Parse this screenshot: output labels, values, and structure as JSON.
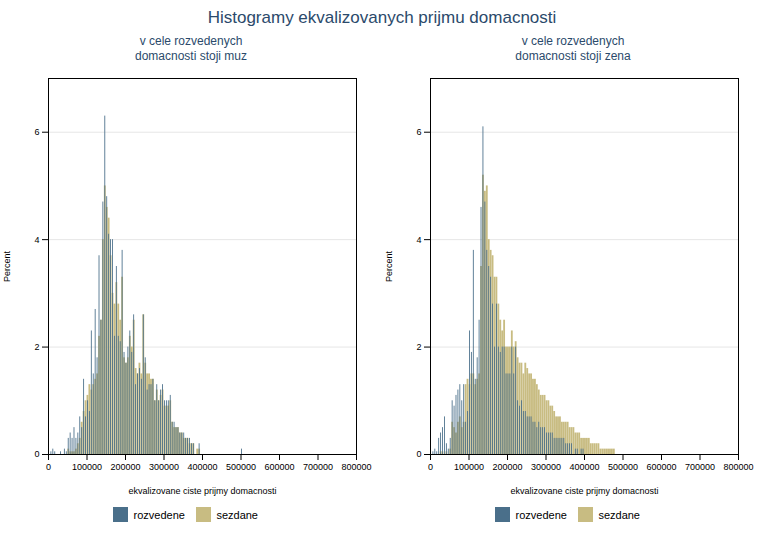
{
  "title": "Histogramy ekvalizovanych prijmu domacnosti",
  "chart_data": [
    {
      "type": "histogram",
      "title": "v cele rozvedenych\ndomacnosti stoji muz",
      "xlabel": "ekvalizovane ciste prijmy domacnosti",
      "ylabel": "Percent",
      "xlim": [
        0,
        800000
      ],
      "xticks": [
        0,
        100000,
        200000,
        300000,
        400000,
        500000,
        600000,
        700000,
        800000
      ],
      "ylim": [
        0,
        7
      ],
      "yticks": [
        0,
        2,
        4,
        6
      ],
      "grid": true,
      "legend": "bottom",
      "bins": [
        0,
        5000,
        10000,
        15000,
        20000,
        25000,
        30000,
        35000,
        40000,
        45000,
        50000,
        55000,
        60000,
        65000,
        70000,
        75000,
        80000,
        85000,
        90000,
        95000,
        100000,
        105000,
        110000,
        115000,
        120000,
        125000,
        130000,
        135000,
        140000,
        145000,
        150000,
        155000,
        160000,
        165000,
        170000,
        175000,
        180000,
        185000,
        190000,
        195000,
        200000,
        205000,
        210000,
        215000,
        220000,
        225000,
        230000,
        235000,
        240000,
        245000,
        250000,
        255000,
        260000,
        265000,
        270000,
        275000,
        280000,
        285000,
        290000,
        295000,
        300000,
        305000,
        310000,
        315000,
        320000,
        325000,
        330000,
        335000,
        340000,
        345000,
        350000,
        355000,
        360000,
        365000,
        370000,
        375000,
        380000,
        385000,
        390000,
        395000,
        400000,
        405000,
        410000,
        415000,
        420000,
        425000,
        430000,
        435000,
        440000,
        445000,
        450000,
        455000,
        460000,
        465000,
        470000,
        475000,
        480000,
        485000,
        490000,
        495000,
        500000,
        505000,
        510000,
        515000,
        520000,
        525000,
        530000,
        535000,
        540000,
        545000,
        550000,
        555000,
        560000,
        565000,
        570000,
        575000,
        580000,
        585000,
        590000,
        595000,
        600000,
        605000,
        610000,
        615000,
        620000,
        625000,
        630000,
        635000,
        640000,
        645000,
        650000,
        655000,
        660000,
        665000,
        670000,
        675000,
        680000,
        685000,
        690000,
        695000,
        700000,
        705000,
        710000,
        715000,
        720000,
        725000,
        730000,
        735000,
        740000,
        745000,
        750000,
        755000,
        760000,
        765000,
        770000,
        775000,
        780000,
        785000,
        790000,
        795000,
        800000
      ],
      "series": [
        {
          "name": "rozvedene",
          "color": "#4a6f8a",
          "values": [
            0.0,
            0.05,
            0.1,
            0.05,
            0.0,
            0.0,
            0.05,
            0.0,
            0.1,
            0.05,
            0.3,
            0.4,
            0.3,
            0.5,
            0.3,
            0.4,
            0.7,
            0.5,
            1.4,
            0.7,
            1.0,
            0.8,
            2.3,
            1.5,
            2.7,
            1.8,
            3.7,
            2.5,
            4.7,
            6.3,
            4.8,
            4.1,
            4.0,
            4.0,
            2.2,
            3.5,
            2.2,
            2.1,
            3.8,
            1.9,
            1.7,
            2.0,
            2.3,
            1.9,
            2.6,
            1.3,
            1.5,
            1.6,
            1.4,
            2.6,
            1.8,
            1.2,
            1.3,
            1.3,
            1.4,
            1.0,
            1.3,
            1.0,
            1.2,
            1.3,
            1.0,
            1.0,
            1.0,
            1.1,
            0.6,
            0.6,
            0.5,
            0.5,
            0.4,
            0.4,
            0.4,
            0.3,
            0.3,
            0.3,
            0.2,
            0.2,
            0.0,
            0.0,
            0.2,
            0.0,
            0.0,
            0.0,
            0.0,
            0.0,
            0.0,
            0.0,
            0.0,
            0.0,
            0.0,
            0.0,
            0.0,
            0.0,
            0.0,
            0.0,
            0.0,
            0.0,
            0.0,
            0.0,
            0.0,
            0.0,
            0.1,
            0.0,
            0.0,
            0.0,
            0.0,
            0.0,
            0.0,
            0.0,
            0.0,
            0.0,
            0.0,
            0.0,
            0.0,
            0.0,
            0.0,
            0.0,
            0.0,
            0.0,
            0.0,
            0.0,
            0.0,
            0.0,
            0.0,
            0.0,
            0.0,
            0.0,
            0.0,
            0.0,
            0.0,
            0.0,
            0.0,
            0.0,
            0.0,
            0.0,
            0.0,
            0.0,
            0.0,
            0.0,
            0.0,
            0.0,
            0.0,
            0.0,
            0.0,
            0.0,
            0.0,
            0.0,
            0.0,
            0.0,
            0.0,
            0.0,
            0.0,
            0.0,
            0.0,
            0.0,
            0.0,
            0.0,
            0.0,
            0.0,
            0.0,
            0.0
          ]
        },
        {
          "name": "sezdane",
          "color": "#c8bc82",
          "values": [
            0.0,
            0.0,
            0.0,
            0.0,
            0.0,
            0.0,
            0.0,
            0.0,
            0.0,
            0.0,
            0.1,
            0.05,
            0.05,
            0.05,
            0.1,
            0.2,
            0.3,
            0.6,
            0.8,
            1.0,
            1.1,
            1.3,
            1.2,
            1.3,
            1.4,
            1.5,
            2.2,
            2.5,
            4.0,
            5.0,
            4.6,
            4.4,
            3.7,
            3.0,
            2.8,
            3.2,
            2.8,
            2.5,
            3.3,
            1.8,
            1.7,
            1.8,
            2.2,
            2.0,
            2.5,
            1.6,
            1.5,
            1.7,
            1.5,
            2.6,
            1.7,
            1.5,
            1.5,
            1.4,
            1.4,
            1.0,
            1.2,
            1.0,
            1.1,
            1.2,
            0.9,
            0.9,
            0.9,
            1.0,
            0.6,
            0.5,
            0.5,
            0.5,
            0.4,
            0.4,
            0.3,
            0.3,
            0.3,
            0.2,
            0.2,
            0.2,
            0.0,
            0.1,
            0.1,
            0.0,
            0.0,
            0.0,
            0.0,
            0.0,
            0.0,
            0.0,
            0.0,
            0.0,
            0.0,
            0.0,
            0.0,
            0.0,
            0.0,
            0.0,
            0.0,
            0.0,
            0.0,
            0.0,
            0.0,
            0.0,
            0.0,
            0.0,
            0.0,
            0.0,
            0.0,
            0.0,
            0.0,
            0.0,
            0.0,
            0.0,
            0.0,
            0.0,
            0.0,
            0.0,
            0.0,
            0.0,
            0.0,
            0.0,
            0.0,
            0.0,
            0.0,
            0.0,
            0.0,
            0.0,
            0.0,
            0.0,
            0.0,
            0.0,
            0.0,
            0.0,
            0.0,
            0.0,
            0.0,
            0.0,
            0.0,
            0.0,
            0.0,
            0.0,
            0.0,
            0.0,
            0.0,
            0.0,
            0.0,
            0.0,
            0.0,
            0.0,
            0.0,
            0.0,
            0.0,
            0.0,
            0.0,
            0.0,
            0.0,
            0.0,
            0.0,
            0.0,
            0.0,
            0.0,
            0.0,
            0.0
          ]
        }
      ]
    },
    {
      "type": "histogram",
      "title": "v cele rozvedenych\ndomacnosti stoji zena",
      "xlabel": "ekvalizovane ciste prijmy domacnosti",
      "ylabel": "Percent",
      "xlim": [
        0,
        800000
      ],
      "xticks": [
        0,
        100000,
        200000,
        300000,
        400000,
        500000,
        600000,
        700000,
        800000
      ],
      "ylim": [
        0,
        7
      ],
      "yticks": [
        0,
        2,
        4,
        6
      ],
      "grid": true,
      "legend": "bottom",
      "bins": [
        0,
        5000,
        10000,
        15000,
        20000,
        25000,
        30000,
        35000,
        40000,
        45000,
        50000,
        55000,
        60000,
        65000,
        70000,
        75000,
        80000,
        85000,
        90000,
        95000,
        100000,
        105000,
        110000,
        115000,
        120000,
        125000,
        130000,
        135000,
        140000,
        145000,
        150000,
        155000,
        160000,
        165000,
        170000,
        175000,
        180000,
        185000,
        190000,
        195000,
        200000,
        205000,
        210000,
        215000,
        220000,
        225000,
        230000,
        235000,
        240000,
        245000,
        250000,
        255000,
        260000,
        265000,
        270000,
        275000,
        280000,
        285000,
        290000,
        295000,
        300000,
        305000,
        310000,
        315000,
        320000,
        325000,
        330000,
        335000,
        340000,
        345000,
        350000,
        355000,
        360000,
        365000,
        370000,
        375000,
        380000,
        385000,
        390000,
        395000,
        400000,
        405000,
        410000,
        415000,
        420000,
        425000,
        430000,
        435000,
        440000,
        445000,
        450000,
        455000,
        460000,
        465000,
        470000,
        475000,
        480000,
        485000,
        490000,
        495000,
        500000,
        505000,
        510000,
        515000,
        520000,
        525000,
        530000,
        535000,
        540000,
        545000,
        550000,
        555000,
        560000,
        565000,
        570000,
        575000,
        580000,
        585000,
        590000,
        595000,
        600000,
        605000,
        610000,
        615000,
        620000,
        625000,
        630000,
        635000,
        640000,
        645000,
        650000,
        655000,
        660000,
        665000,
        670000,
        675000,
        680000,
        685000,
        690000,
        695000,
        700000,
        705000,
        710000,
        715000,
        720000,
        725000,
        730000,
        735000,
        740000,
        745000,
        750000,
        755000,
        760000,
        765000,
        770000,
        775000,
        780000,
        785000,
        790000,
        795000,
        800000
      ],
      "series": [
        {
          "name": "rozvedene",
          "color": "#4a6f8a",
          "values": [
            0.0,
            0.05,
            0.1,
            0.05,
            0.3,
            0.4,
            0.5,
            0.7,
            0.2,
            0.1,
            0.3,
            1.0,
            0.9,
            1.1,
            1.2,
            1.3,
            1.0,
            1.3,
            0.6,
            0.8,
            2.3,
            1.9,
            3.8,
            1.4,
            1.8,
            2.5,
            4.6,
            6.1,
            4.7,
            3.8,
            3.5,
            3.3,
            2.8,
            2.0,
            2.8,
            2.0,
            1.9,
            2.0,
            2.0,
            1.5,
            1.5,
            1.5,
            2.0,
            1.5,
            2.0,
            1.0,
            0.9,
            1.0,
            0.8,
            0.8,
            0.7,
            0.7,
            0.7,
            0.6,
            0.6,
            0.5,
            0.6,
            0.5,
            0.5,
            0.5,
            0.4,
            0.4,
            0.4,
            0.4,
            0.3,
            0.3,
            0.3,
            0.3,
            0.3,
            0.3,
            0.2,
            0.2,
            0.2,
            0.2,
            0.0,
            0.1,
            0.1,
            0.0,
            0.1,
            0.1,
            0.0,
            0.0,
            0.0,
            0.0,
            0.0,
            0.0,
            0.0,
            0.0,
            0.0,
            0.0,
            0.0,
            0.0,
            0.0,
            0.0,
            0.0,
            0.0,
            0.0,
            0.0,
            0.0,
            0.0,
            0.0,
            0.0,
            0.0,
            0.0,
            0.0,
            0.0,
            0.0,
            0.0,
            0.0,
            0.0,
            0.0,
            0.0,
            0.0,
            0.0,
            0.0,
            0.0,
            0.0,
            0.0,
            0.0,
            0.0,
            0.0,
            0.0,
            0.0,
            0.0,
            0.0,
            0.0,
            0.0,
            0.0,
            0.0,
            0.0,
            0.0,
            0.0,
            0.0,
            0.0,
            0.0,
            0.0,
            0.0,
            0.0,
            0.0,
            0.0,
            0.0,
            0.0,
            0.0,
            0.0,
            0.0,
            0.0,
            0.0,
            0.0,
            0.0,
            0.0,
            0.0,
            0.0,
            0.0,
            0.0,
            0.0,
            0.0,
            0.0,
            0.0,
            0.0,
            0.0
          ]
        },
        {
          "name": "sezdane",
          "color": "#c8bc82",
          "values": [
            0.0,
            0.0,
            0.0,
            0.0,
            0.0,
            0.05,
            0.05,
            0.0,
            0.05,
            0.0,
            0.1,
            0.6,
            0.5,
            0.4,
            0.6,
            0.7,
            0.5,
            0.6,
            1.3,
            1.4,
            1.3,
            1.5,
            1.5,
            1.3,
            1.4,
            1.5,
            3.5,
            5.2,
            4.9,
            5.0,
            4.0,
            3.8,
            3.7,
            3.3,
            3.3,
            2.8,
            2.5,
            2.3,
            2.5,
            2.0,
            2.0,
            2.0,
            2.3,
            2.0,
            2.1,
            1.8,
            1.7,
            1.7,
            1.5,
            1.7,
            1.6,
            1.5,
            1.5,
            1.4,
            1.4,
            1.3,
            1.2,
            1.1,
            1.1,
            1.1,
            1.0,
            1.0,
            0.9,
            0.9,
            0.8,
            0.7,
            0.7,
            0.7,
            0.6,
            0.6,
            0.6,
            0.6,
            0.5,
            0.5,
            0.5,
            0.4,
            0.4,
            0.4,
            0.3,
            0.3,
            0.3,
            0.3,
            0.3,
            0.2,
            0.2,
            0.2,
            0.2,
            0.2,
            0.1,
            0.1,
            0.1,
            0.1,
            0.1,
            0.1,
            0.1,
            0.1,
            0.0,
            0.0,
            0.0,
            0.0,
            0.0,
            0.0,
            0.0,
            0.0,
            0.0,
            0.0,
            0.0,
            0.0,
            0.0,
            0.0,
            0.0,
            0.0,
            0.0,
            0.0,
            0.0,
            0.0,
            0.0,
            0.0,
            0.0,
            0.0,
            0.0,
            0.0,
            0.0,
            0.0,
            0.0,
            0.0,
            0.0,
            0.0,
            0.0,
            0.0,
            0.0,
            0.0,
            0.0,
            0.0,
            0.0,
            0.0,
            0.0,
            0.0,
            0.0,
            0.0,
            0.0,
            0.0,
            0.0,
            0.0,
            0.0,
            0.0,
            0.0,
            0.0,
            0.0,
            0.0,
            0.0,
            0.0,
            0.0,
            0.0,
            0.0,
            0.0,
            0.0,
            0.0,
            0.0,
            0.0
          ]
        }
      ]
    }
  ]
}
